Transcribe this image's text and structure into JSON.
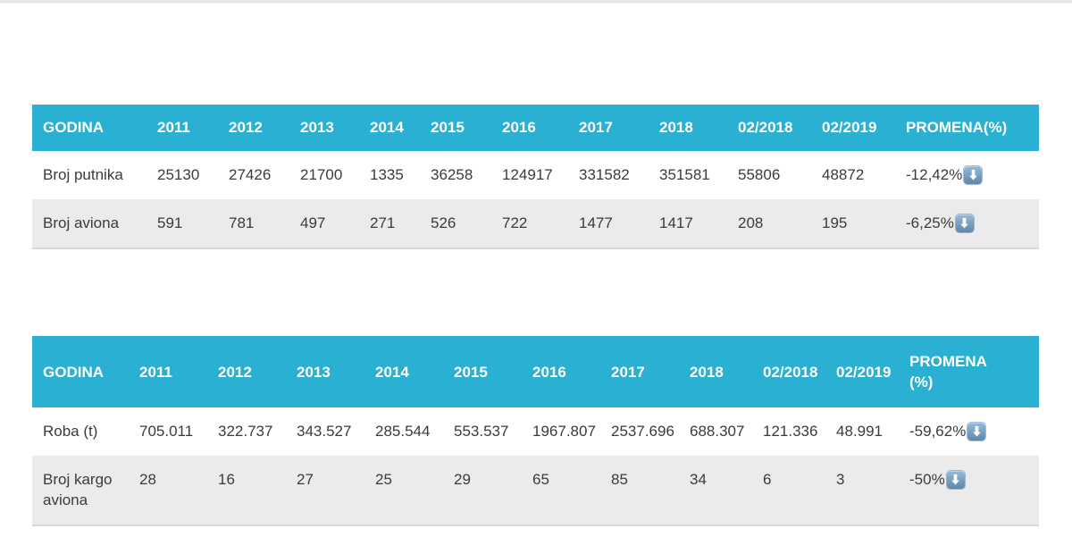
{
  "colors": {
    "header_bg": "#29b0d2",
    "header_text": "#ffffff",
    "row_alt_bg": "#ebebeb",
    "body_text": "#3b3b3b",
    "top_divider": "#e6e6e6",
    "trend_icon_bg": "#5d87ac"
  },
  "icons": {
    "trend_down": "down-arrow-in-blue-rounded-square"
  },
  "tables": [
    {
      "name": "passenger-aircraft-stats",
      "columns": [
        "GODINA",
        "2011",
        "2012",
        "2013",
        "2014",
        "2015",
        "2016",
        "2017",
        "2018",
        "02/2018",
        "02/2019",
        "PROMENA(%)"
      ],
      "rows": [
        {
          "label": "Broj putnika",
          "values": [
            "25130",
            "27426",
            "21700",
            "1335",
            "36258",
            "124917",
            "331582",
            "351581",
            "55806",
            "48872"
          ],
          "change": "-12,42%",
          "trend": "down"
        },
        {
          "label": "Broj aviona",
          "values": [
            "591",
            "781",
            "497",
            "271",
            "526",
            "722",
            "1477",
            "1417",
            "208",
            "195"
          ],
          "change": "-6,25%",
          "trend": "down"
        }
      ]
    },
    {
      "name": "cargo-stats",
      "columns": [
        "GODINA",
        "2011",
        "2012",
        "2013",
        "2014",
        "2015",
        "2016",
        "2017",
        "2018",
        "02/2018",
        "02/2019",
        "PROMENA (%)"
      ],
      "rows": [
        {
          "label": "Roba (t)",
          "values": [
            "705.011",
            "322.737",
            "343.527",
            "285.544",
            "553.537",
            "1967.807",
            "2537.696",
            "688.307",
            "121.336",
            "48.991"
          ],
          "change": "-59,62%",
          "trend": "down"
        },
        {
          "label": "Broj kargo aviona",
          "values": [
            "28",
            "16",
            "27",
            "25",
            "29",
            "65",
            "85",
            "34",
            "6",
            "3"
          ],
          "change": "-50%",
          "trend": "down"
        }
      ]
    }
  ]
}
